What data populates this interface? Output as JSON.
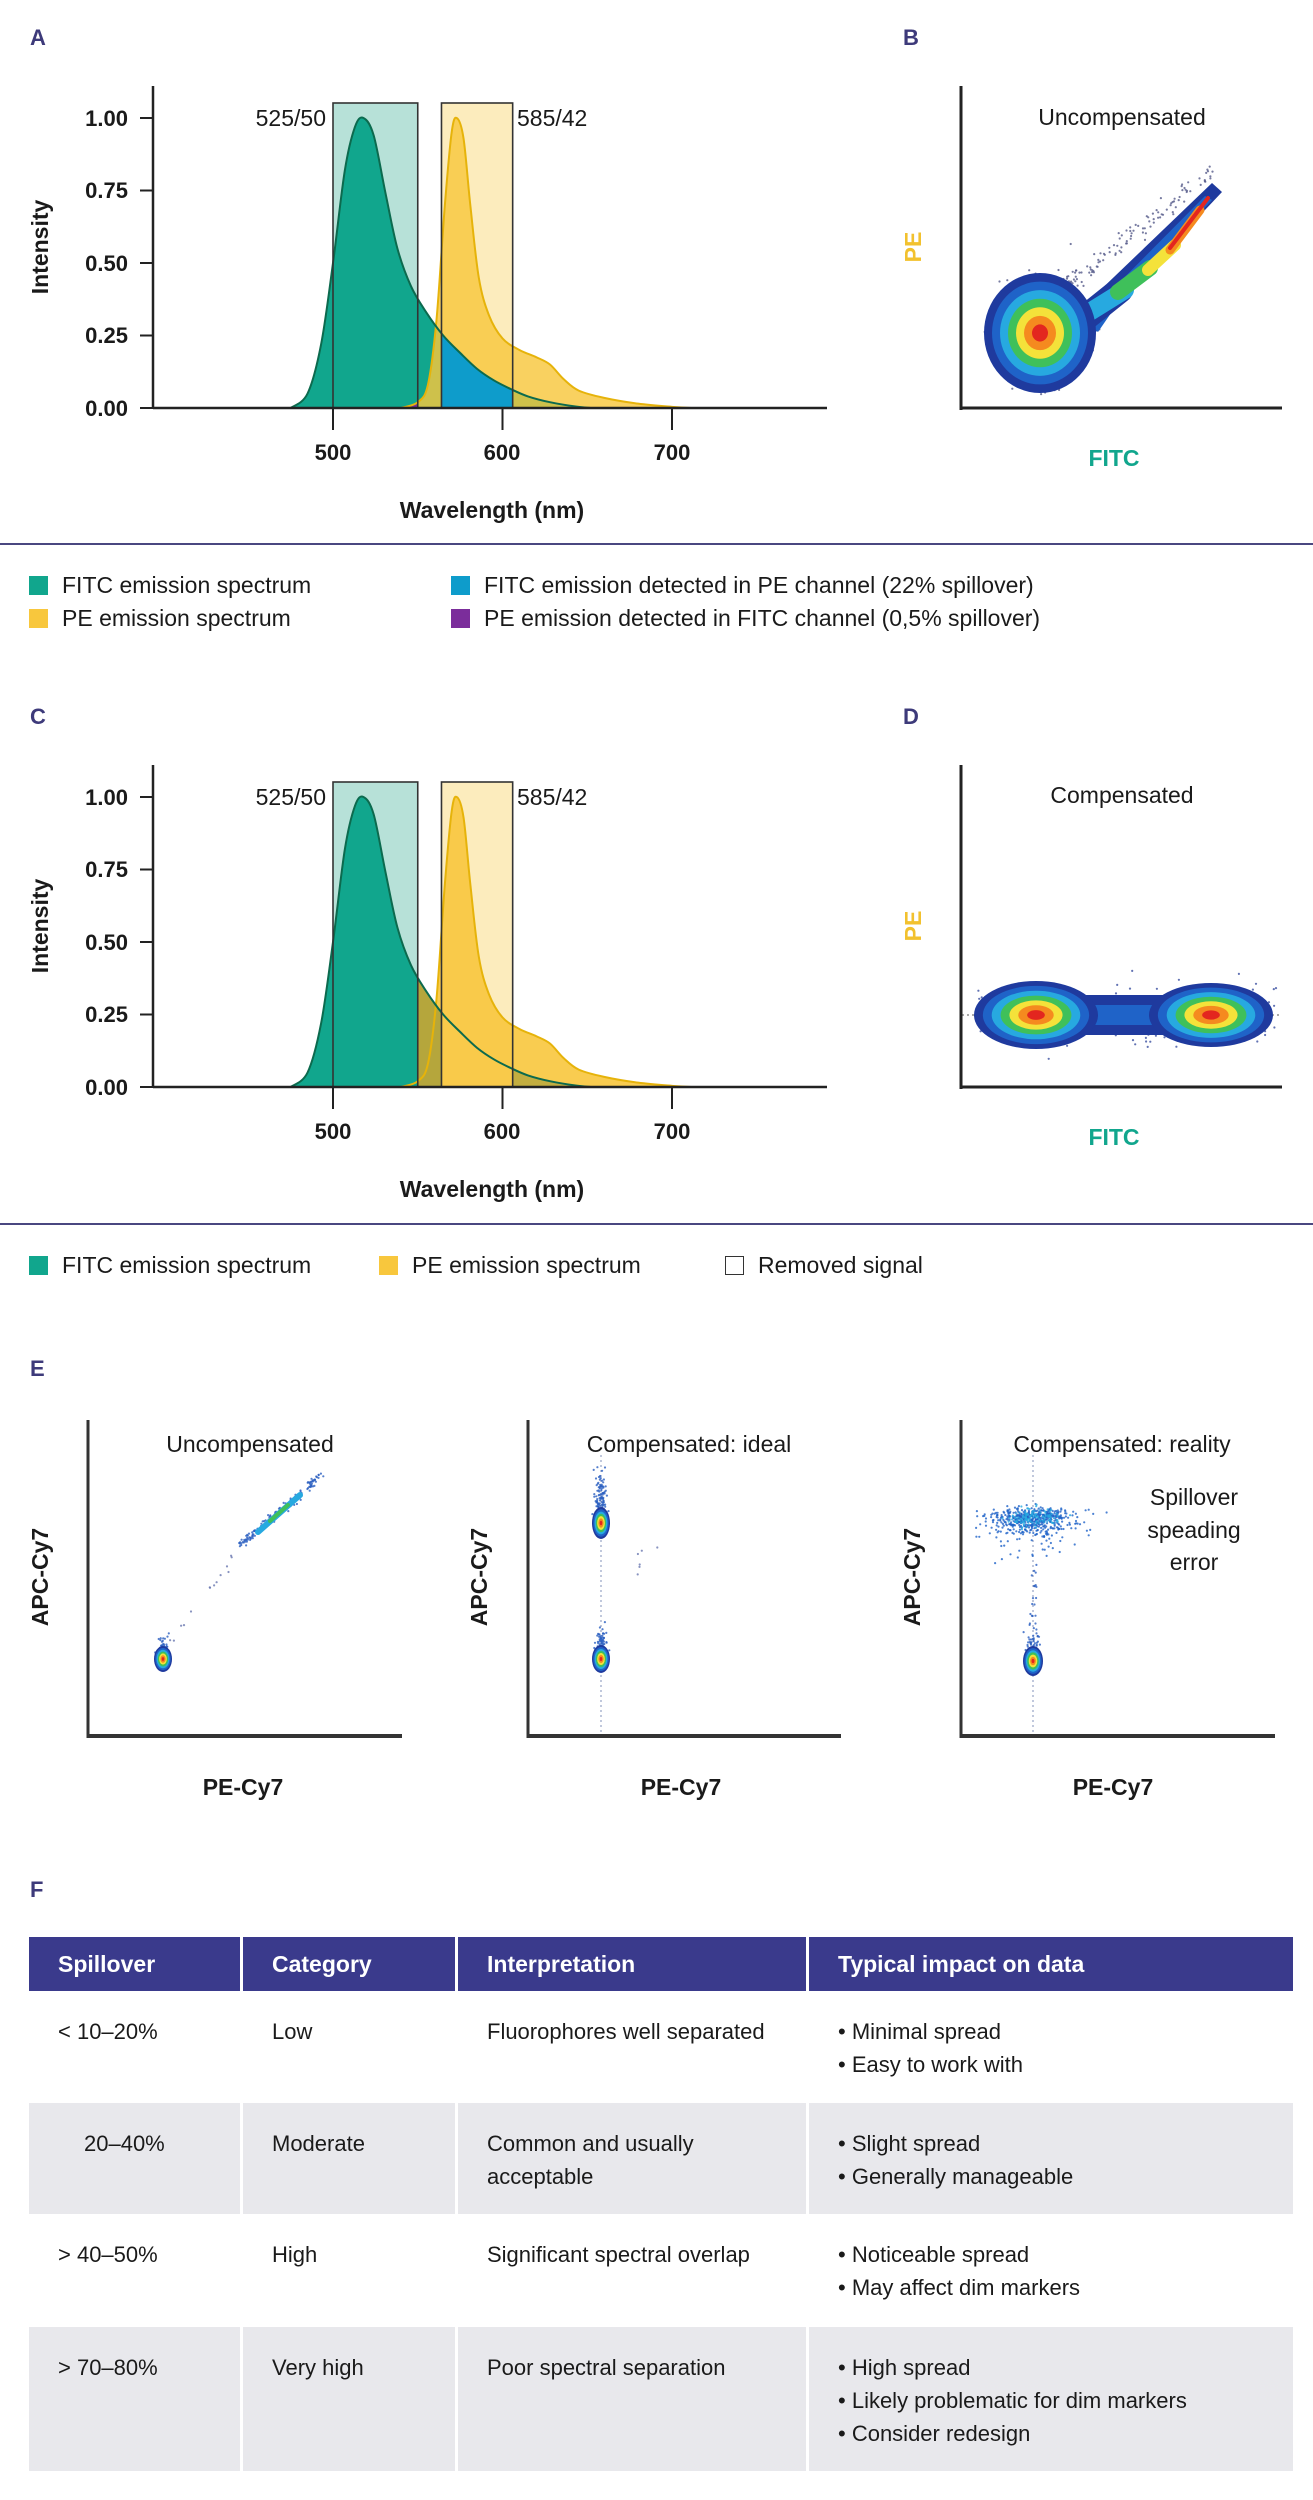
{
  "panels": {
    "a": "A",
    "b": "B",
    "c": "C",
    "d": "D",
    "e": "E",
    "f": "F"
  },
  "colors": {
    "fitc": "#11a68d",
    "pe": "#f8c73d",
    "fitc_in_pe": "#0e9ccb",
    "pe_in_fitc": "#7b2d9b",
    "filter_fitc": "#b7e1d8",
    "filter_pe": "#fcecbd",
    "navy": "#3a3a8c",
    "olive": "#b5a63c"
  },
  "chart_data": [
    {
      "type": "area",
      "panel": "A",
      "xlabel": "Wavelength (nm)",
      "ylabel": "Intensity",
      "xlim": [
        394,
        791
      ],
      "ylim": [
        0,
        1.11
      ],
      "xticks": [
        "500",
        "600",
        "700"
      ],
      "yticks": [
        "0.00",
        "0.25",
        "0.50",
        "0.75",
        "1.00"
      ],
      "filters": [
        {
          "label": "525/50",
          "range": [
            500,
            550
          ]
        },
        {
          "label": "585/42",
          "range": [
            564,
            606
          ]
        }
      ],
      "series": [
        {
          "name": "FITC emission spectrum",
          "points": [
            [
              475,
              0
            ],
            [
              485,
              0.05
            ],
            [
              493,
              0.22
            ],
            [
              500,
              0.5
            ],
            [
              507,
              0.82
            ],
            [
              513,
              0.97
            ],
            [
              518,
              1.0
            ],
            [
              524,
              0.94
            ],
            [
              531,
              0.74
            ],
            [
              538,
              0.55
            ],
            [
              546,
              0.42
            ],
            [
              555,
              0.33
            ],
            [
              565,
              0.25
            ],
            [
              575,
              0.19
            ],
            [
              585,
              0.135
            ],
            [
              595,
              0.095
            ],
            [
              605,
              0.065
            ],
            [
              615,
              0.04
            ],
            [
              628,
              0.02
            ],
            [
              642,
              0.006
            ],
            [
              652,
              0
            ]
          ]
        },
        {
          "name": "PE emission spectrum",
          "points": [
            [
              540,
              0
            ],
            [
              550,
              0.02
            ],
            [
              556,
              0.08
            ],
            [
              561,
              0.3
            ],
            [
              566,
              0.7
            ],
            [
              570,
              0.95
            ],
            [
              573,
              1.0
            ],
            [
              577,
              0.93
            ],
            [
              581,
              0.7
            ],
            [
              586,
              0.45
            ],
            [
              592,
              0.32
            ],
            [
              600,
              0.24
            ],
            [
              610,
              0.2
            ],
            [
              620,
              0.175
            ],
            [
              628,
              0.15
            ],
            [
              636,
              0.1
            ],
            [
              645,
              0.06
            ],
            [
              660,
              0.035
            ],
            [
              680,
              0.015
            ],
            [
              700,
              0.004
            ],
            [
              712,
              0
            ]
          ]
        }
      ],
      "regions": [
        {
          "name": "FITC emission detected in PE channel (22% spillover)"
        },
        {
          "name": "PE emission detected in FITC channel (0,5% spillover)"
        }
      ]
    },
    {
      "type": "scatter",
      "panel": "B",
      "title": "Uncompensated",
      "xlabel": "FITC",
      "ylabel": "PE"
    },
    {
      "type": "area",
      "panel": "C",
      "xlabel": "Wavelength (nm)",
      "ylabel": "Intensity",
      "xlim": [
        394,
        791
      ],
      "ylim": [
        0,
        1.11
      ],
      "xticks": [
        "500",
        "600",
        "700"
      ],
      "yticks": [
        "0.00",
        "0.25",
        "0.50",
        "0.75",
        "1.00"
      ],
      "filters": [
        {
          "label": "525/50",
          "range": [
            500,
            550
          ]
        },
        {
          "label": "585/42",
          "range": [
            564,
            606
          ]
        }
      ],
      "series": [
        {
          "name": "FITC emission spectrum"
        },
        {
          "name": "PE emission spectrum"
        }
      ],
      "removed_label": "Removed signal"
    },
    {
      "type": "scatter",
      "panel": "D",
      "title": "Compensated",
      "xlabel": "FITC",
      "ylabel": "PE"
    },
    {
      "type": "scatter",
      "panel": "E1",
      "title": "Uncompensated",
      "xlabel": "PE-Cy7",
      "ylabel": "APC-Cy7"
    },
    {
      "type": "scatter",
      "panel": "E2",
      "title": "Compensated: ideal",
      "xlabel": "PE-Cy7",
      "ylabel": "APC-Cy7"
    },
    {
      "type": "scatter",
      "panel": "E3",
      "title": "Compensated: reality",
      "xlabel": "PE-Cy7",
      "ylabel": "APC-Cy7",
      "annotation": [
        "Spillover",
        "speading",
        "error"
      ]
    }
  ],
  "table": {
    "headers": [
      "Spillover",
      "Category",
      "Interpretation",
      "Typical impact on data"
    ],
    "rows": [
      {
        "spillover": "< 10–20%",
        "category": "Low",
        "interpretation": "Fluorophores well separated",
        "impact": [
          "Minimal spread",
          "Easy to work with"
        ]
      },
      {
        "spillover": "20–40%",
        "category": "Moderate",
        "interpretation": "Common and usually acceptable",
        "impact": [
          "Slight spread",
          "Generally manageable"
        ]
      },
      {
        "spillover": "> 40–50%",
        "category": "High",
        "interpretation": "Significant spectral overlap",
        "impact": [
          "Noticeable spread",
          "May affect dim markers"
        ]
      },
      {
        "spillover": "> 70–80%",
        "category": "Very high",
        "interpretation": "Poor spectral separation",
        "impact": [
          "High spread",
          "Likely problematic for dim markers",
          "Consider redesign"
        ]
      }
    ]
  }
}
